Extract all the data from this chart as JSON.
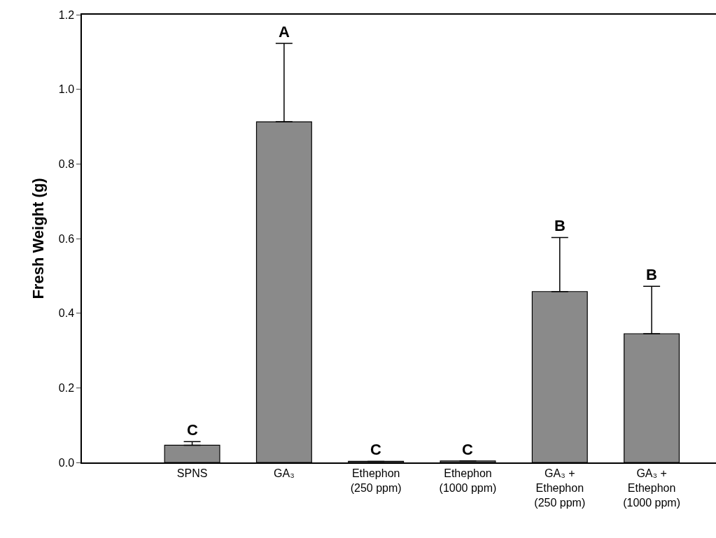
{
  "chart_data": {
    "type": "bar",
    "ylabel": "Fresh Weight (g)",
    "categories": [
      "SPNS",
      "GA₃",
      "Ethephon\n(250 ppm)",
      "Ethephon\n(1000 ppm)",
      "GA₃ +\nEthephon\n(250 ppm)",
      "GA₃ +\nEthephon\n(1000 ppm)"
    ],
    "values": [
      0.046,
      0.913,
      0.003,
      0.004,
      0.458,
      0.345
    ],
    "errors": [
      0.01,
      0.21,
      null,
      null,
      0.145,
      0.127
    ],
    "color": "#8a8a8a",
    "ylim": [
      0,
      1.2
    ],
    "yticks": [
      {
        "value": 0,
        "label": "0.0"
      },
      0.2,
      0.4,
      0.6,
      0.8,
      {
        "value": 1,
        "label": "1.0"
      },
      1.2
    ],
    "annotations": [
      {
        "text": "C",
        "x": "SPNS",
        "y": 0.056
      },
      {
        "text": "A",
        "x": "GA₃",
        "y": 1.123
      },
      {
        "text": "C",
        "x": "Ethephon\n(250 ppm)",
        "y": 0.003
      },
      {
        "text": "C",
        "x": "Ethephon\n(1000 ppm)",
        "y": 0.004
      },
      {
        "text": "B",
        "x": "GA₃ +\nEthephon\n(250 ppm)",
        "y": 0.603
      },
      {
        "text": "B",
        "x": "GA₃ +\nEthephon\n(1000 ppm)",
        "y": 0.472
      }
    ]
  }
}
